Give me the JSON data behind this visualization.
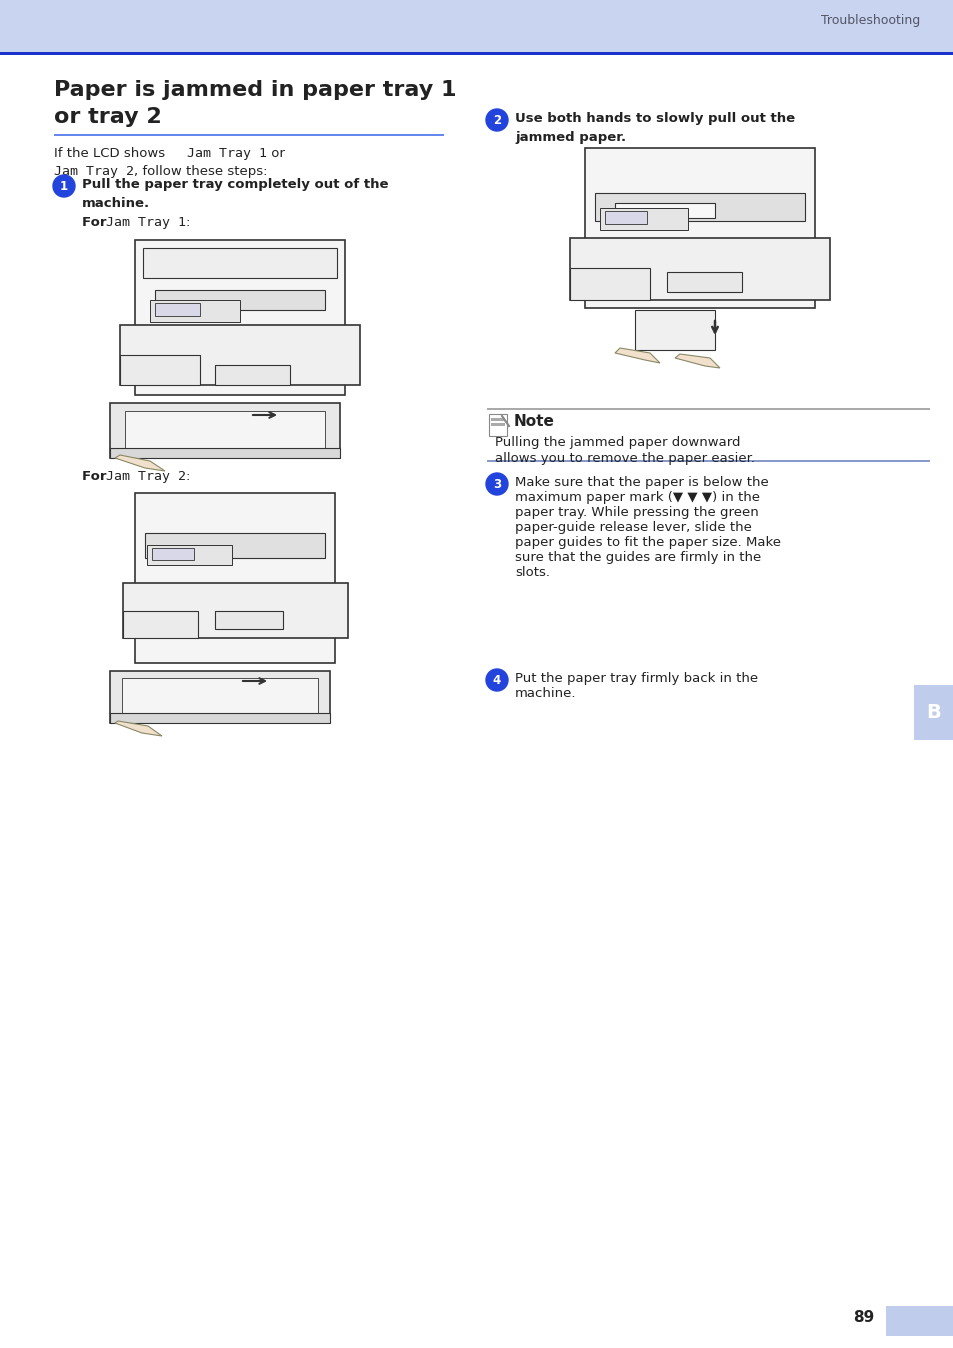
{
  "page_bg": "#ffffff",
  "header_bg": "#c8d4f0",
  "header_line_color": "#1a33cc",
  "header_text": "Troubleshooting",
  "header_text_color": "#555566",
  "title_line1": "Paper is jammed in paper tray 1",
  "title_line2": "or tray 2",
  "title_color": "#000000",
  "title_underline_color": "#6688ee",
  "body_text_color": "#222222",
  "mono_font": "DejaVu Sans Mono",
  "sans_font": "DejaVu Sans",
  "step_circle_color": "#2244dd",
  "step_number_color": "#ffffff",
  "note_line_color": "#aaaaaa",
  "note_title": "Note",
  "note_text_line1": "Pulling the jammed paper downward",
  "note_text_line2": "allows you to remove the paper easier.",
  "step3_text": "Make sure that the paper is below the\nmaximum paper mark (▼ ▼ ▼) in the\npaper tray. While pressing the green\npaper-guide release lever, slide the\npaper guides to fit the paper size. Make\nsure that the guides are firmly in the\nslots.",
  "step4_text": "Put the paper tray firmly back in the\nmachine.",
  "footer_page": "89",
  "footer_tab_color": "#c0ccec",
  "img_bg": "#ffffff",
  "img_stroke": "#333333",
  "img_light_gray": "#e8e8e8",
  "img_mid_gray": "#bbbbbb"
}
